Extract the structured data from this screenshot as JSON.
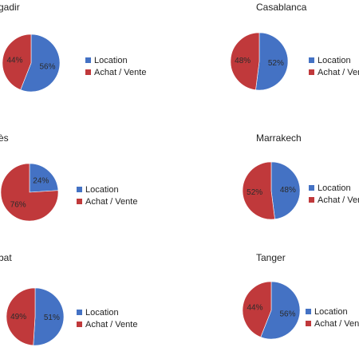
{
  "legend": {
    "location": "Location",
    "achat": "Achat / Vente"
  },
  "colors": {
    "location": "#4472C4",
    "achat": "#C0393B"
  },
  "chart_data": [
    {
      "type": "pie",
      "title": "gadir",
      "categories": [
        "Location",
        "Achat / Vente"
      ],
      "values": [
        56,
        44
      ],
      "labels": [
        "56%",
        "44%"
      ]
    },
    {
      "type": "pie",
      "title": "Casablanca",
      "categories": [
        "Location",
        "Achat / Vente"
      ],
      "values": [
        52,
        48
      ],
      "labels": [
        "52%",
        "48%"
      ]
    },
    {
      "type": "pie",
      "title": "ès",
      "categories": [
        "Location",
        "Achat / Vente"
      ],
      "values": [
        24,
        76
      ],
      "labels": [
        "24%",
        "76%"
      ]
    },
    {
      "type": "pie",
      "title": "Marrakech",
      "categories": [
        "Location",
        "Achat / Vente"
      ],
      "values": [
        48,
        52
      ],
      "labels": [
        "48%",
        "52%"
      ]
    },
    {
      "type": "pie",
      "title": "bat",
      "categories": [
        "Location",
        "Achat / Vente"
      ],
      "values": [
        51,
        49
      ],
      "labels": [
        "51%",
        "49%"
      ]
    },
    {
      "type": "pie",
      "title": "Tanger",
      "categories": [
        "Location",
        "Achat / Vente"
      ],
      "values": [
        56,
        44
      ],
      "labels": [
        "56%",
        "44%"
      ]
    }
  ]
}
